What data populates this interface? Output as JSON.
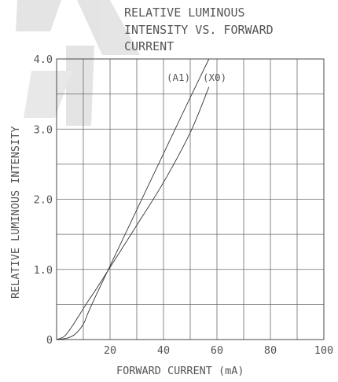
{
  "chart_data": {
    "type": "line",
    "title": "RELATIVE LUMINOUS INTENSITY VS. FORWARD CURRENT",
    "title_lines": [
      "RELATIVE LUMINOUS",
      "INTENSITY VS. FORWARD",
      "CURRENT"
    ],
    "xlabel": "FORWARD CURRENT (mA)",
    "ylabel": "RELATIVE LUMINOUS INTENSITY",
    "xlim": [
      0,
      100
    ],
    "ylim": [
      0,
      4.0
    ],
    "x_ticks": [
      0,
      20,
      40,
      60,
      80,
      100
    ],
    "x_tick_labels": [
      "20",
      "40",
      "60",
      "80",
      "100"
    ],
    "y_ticks": [
      0,
      1.0,
      2.0,
      3.0,
      4.0
    ],
    "y_tick_labels": [
      "0",
      "1.0",
      "2.0",
      "3.0",
      "4.0"
    ],
    "grid": true,
    "series": [
      {
        "name": "(A1)",
        "x": [
          0,
          3,
          6,
          9,
          12,
          15,
          20,
          30,
          40,
          50,
          57
        ],
        "y": [
          0,
          0.05,
          0.2,
          0.38,
          0.56,
          0.73,
          1.03,
          1.63,
          2.24,
          2.95,
          3.6
        ]
      },
      {
        "name": "(X0)",
        "x": [
          0,
          4,
          7,
          10,
          12,
          15,
          20,
          30,
          40,
          50,
          57
        ],
        "y": [
          0,
          0.02,
          0.08,
          0.22,
          0.4,
          0.65,
          1.05,
          1.85,
          2.65,
          3.45,
          4.0
        ]
      }
    ]
  }
}
